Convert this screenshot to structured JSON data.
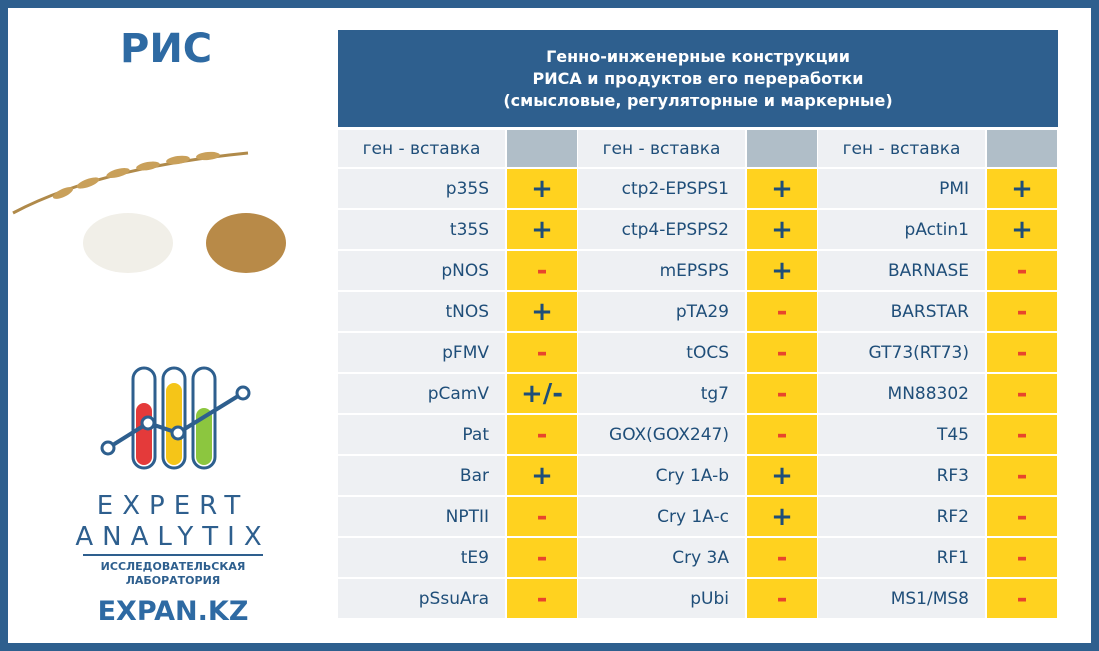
{
  "brand": {
    "title": "РИС",
    "logo_line1": "EXPERT",
    "logo_line2": "ANALYTIX",
    "logo_sub1": "ИССЛЕДОВАТЕЛЬСКАЯ",
    "logo_sub2": "ЛАБОРАТОРИЯ",
    "site": "EXPAN.KZ"
  },
  "header": {
    "title": [
      "Генно-инженерные конструкции",
      "РИСА и продуктов его переработки",
      "(смысловые, регуляторные и маркерные)"
    ]
  },
  "table": {
    "column_headers": [
      "ген - вставка",
      "ген - вставка",
      "ген - вставка"
    ],
    "rows": [
      [
        [
          "p35S",
          "+"
        ],
        [
          "ctp2-EPSPS1",
          "+"
        ],
        [
          "PMI",
          "+"
        ]
      ],
      [
        [
          "t35S",
          "+"
        ],
        [
          "ctp4-EPSPS2",
          "+"
        ],
        [
          "pActin1",
          "+"
        ]
      ],
      [
        [
          "pNOS",
          "-"
        ],
        [
          "mEPSPS",
          "+"
        ],
        [
          "BARNASE",
          "-"
        ]
      ],
      [
        [
          "tNOS",
          "+"
        ],
        [
          "pTA29",
          "-"
        ],
        [
          "BARSTAR",
          "-"
        ]
      ],
      [
        [
          "pFMV",
          "-"
        ],
        [
          "tOCS",
          "-"
        ],
        [
          "GT73(RT73)",
          "-"
        ]
      ],
      [
        [
          "pCamV",
          "+/-"
        ],
        [
          "tg7",
          "-"
        ],
        [
          "MN88302",
          "-"
        ]
      ],
      [
        [
          "Pat",
          "-"
        ],
        [
          "GOX(GOX247)",
          "-"
        ],
        [
          "T45",
          "-"
        ]
      ],
      [
        [
          "Bar",
          "+"
        ],
        [
          "Cry 1A-b",
          "+"
        ],
        [
          "RF3",
          "-"
        ]
      ],
      [
        [
          "NPTII",
          "-"
        ],
        [
          "Cry 1A-c",
          "+"
        ],
        [
          "RF2",
          "-"
        ]
      ],
      [
        [
          "tE9",
          "-"
        ],
        [
          "Cry 3A",
          "-"
        ],
        [
          "RF1",
          "-"
        ]
      ],
      [
        [
          "pSsuAra",
          "-"
        ],
        [
          "pUbi",
          "-"
        ],
        [
          "MS1/MS8",
          "-"
        ]
      ]
    ]
  }
}
